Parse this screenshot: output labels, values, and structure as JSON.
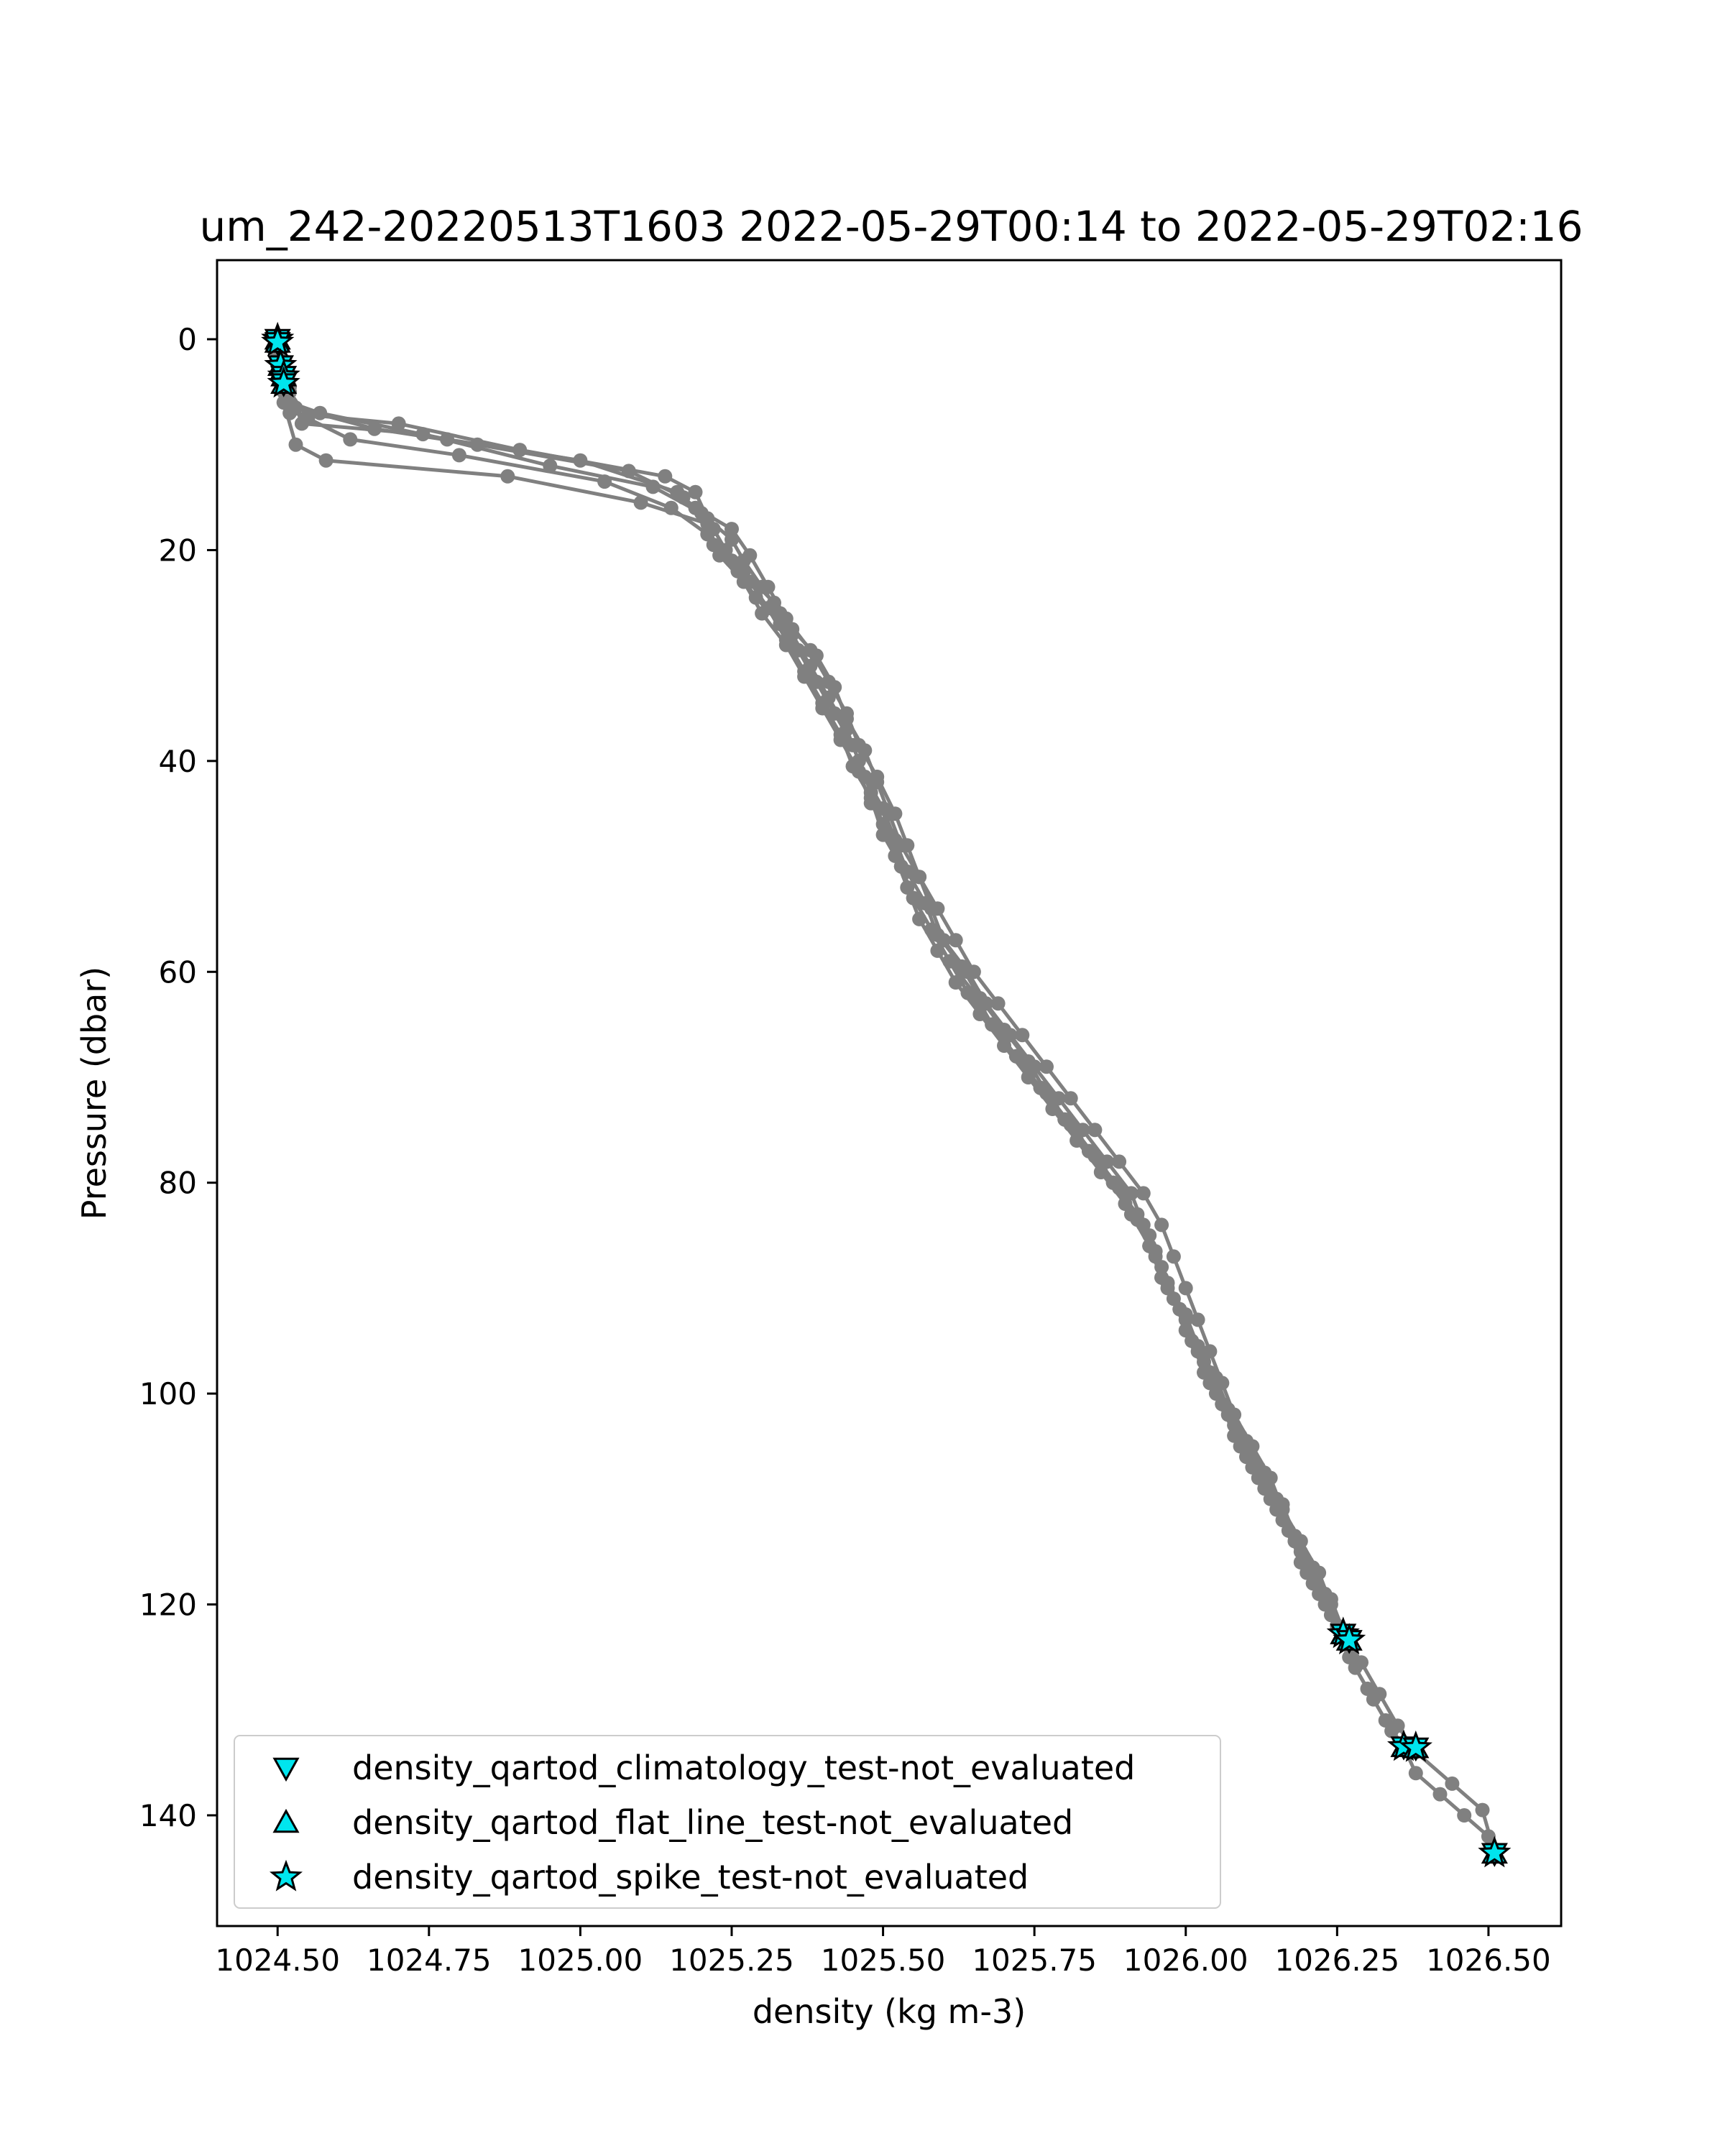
{
  "chart_data": {
    "type": "line",
    "title": "um_242-20220513T1603 2022-05-29T00:14 to 2022-05-29T02:16",
    "xlabel": "density (kg m-3)",
    "ylabel": "Pressure (dbar)",
    "xlim": [
      1024.4,
      1026.62
    ],
    "ylim": [
      150.5,
      -7.5
    ],
    "y_inverted": true,
    "grid": false,
    "xticks": [
      "1024.50",
      "1024.75",
      "1025.00",
      "1025.25",
      "1025.50",
      "1025.75",
      "1026.00",
      "1026.25",
      "1026.50"
    ],
    "yticks": [
      "0",
      "20",
      "40",
      "60",
      "80",
      "100",
      "120",
      "140"
    ],
    "line_color": "#808080",
    "marker_color": "#00e5ee",
    "series": [
      {
        "points": [
          [
            1024.5,
            0
          ],
          [
            1024.5,
            2
          ],
          [
            1024.51,
            3.5
          ],
          [
            1024.51,
            5
          ],
          [
            1024.52,
            7
          ],
          [
            1024.7,
            8
          ],
          [
            1024.9,
            10.5
          ],
          [
            1025.14,
            13
          ],
          [
            1025.19,
            14.5
          ],
          [
            1025.21,
            17
          ],
          [
            1025.25,
            19
          ],
          [
            1025.27,
            21
          ],
          [
            1025.3,
            23.5
          ],
          [
            1025.33,
            26
          ],
          [
            1025.35,
            28
          ],
          [
            1025.38,
            31
          ],
          [
            1025.41,
            34
          ],
          [
            1025.44,
            37
          ],
          [
            1025.46,
            40
          ],
          [
            1025.48,
            43
          ],
          [
            1025.5,
            46
          ],
          [
            1025.52,
            49
          ],
          [
            1025.54,
            52
          ],
          [
            1025.56,
            55
          ],
          [
            1025.59,
            58
          ],
          [
            1025.62,
            61
          ],
          [
            1025.66,
            64
          ],
          [
            1025.7,
            67
          ],
          [
            1025.74,
            70
          ],
          [
            1025.78,
            73
          ],
          [
            1025.82,
            76
          ],
          [
            1025.86,
            79
          ],
          [
            1025.9,
            82
          ],
          [
            1025.94,
            85
          ],
          [
            1025.96,
            88
          ],
          [
            1025.98,
            91
          ],
          [
            1026.0,
            94
          ],
          [
            1026.03,
            97
          ],
          [
            1026.05,
            100
          ],
          [
            1026.08,
            103
          ],
          [
            1026.1,
            106
          ],
          [
            1026.13,
            109
          ],
          [
            1026.16,
            112
          ],
          [
            1026.19,
            115
          ],
          [
            1026.21,
            118
          ],
          [
            1026.24,
            121
          ],
          [
            1026.26,
            123
          ]
        ]
      },
      {
        "points": [
          [
            1024.5,
            0.5
          ],
          [
            1024.5,
            2.5
          ],
          [
            1024.51,
            4
          ],
          [
            1024.53,
            6.5
          ],
          [
            1024.66,
            8.5
          ],
          [
            1024.83,
            10
          ],
          [
            1025.08,
            12.5
          ],
          [
            1025.17,
            15
          ],
          [
            1025.22,
            18
          ],
          [
            1025.24,
            20
          ],
          [
            1025.27,
            22
          ],
          [
            1025.32,
            25
          ],
          [
            1025.35,
            27.5
          ],
          [
            1025.39,
            30
          ],
          [
            1025.42,
            33
          ],
          [
            1025.44,
            36
          ],
          [
            1025.47,
            39
          ],
          [
            1025.49,
            42
          ],
          [
            1025.51,
            45
          ],
          [
            1025.53,
            48
          ],
          [
            1025.56,
            51
          ],
          [
            1025.58,
            54
          ],
          [
            1025.6,
            57
          ],
          [
            1025.64,
            60
          ],
          [
            1025.67,
            63
          ],
          [
            1025.71,
            66
          ],
          [
            1025.75,
            69
          ],
          [
            1025.79,
            72
          ],
          [
            1025.83,
            75
          ],
          [
            1025.87,
            78
          ],
          [
            1025.91,
            81
          ],
          [
            1025.93,
            84
          ],
          [
            1025.95,
            87
          ],
          [
            1025.97,
            90
          ],
          [
            1026.0,
            93
          ],
          [
            1026.02,
            96
          ],
          [
            1026.04,
            99
          ],
          [
            1026.07,
            102
          ],
          [
            1026.09,
            105
          ],
          [
            1026.12,
            108
          ],
          [
            1026.15,
            111
          ],
          [
            1026.18,
            114
          ],
          [
            1026.2,
            117
          ],
          [
            1026.23,
            120
          ],
          [
            1026.26,
            123
          ],
          [
            1026.28,
            126
          ],
          [
            1026.31,
            129
          ],
          [
            1026.34,
            132
          ],
          [
            1026.37,
            134
          ]
        ]
      },
      {
        "points": [
          [
            1024.5,
            1
          ],
          [
            1024.51,
            3
          ],
          [
            1024.52,
            5
          ],
          [
            1024.55,
            7.5
          ],
          [
            1024.62,
            9.5
          ],
          [
            1024.8,
            11
          ],
          [
            1025.04,
            13.5
          ],
          [
            1025.15,
            16
          ],
          [
            1025.21,
            18.5
          ],
          [
            1025.25,
            21
          ],
          [
            1025.28,
            23
          ],
          [
            1025.31,
            25.5
          ],
          [
            1025.34,
            28.5
          ],
          [
            1025.37,
            31.5
          ],
          [
            1025.4,
            34.5
          ],
          [
            1025.43,
            37.5
          ],
          [
            1025.45,
            40.5
          ],
          [
            1025.48,
            43.5
          ],
          [
            1025.5,
            47
          ],
          [
            1025.53,
            50
          ],
          [
            1025.55,
            53
          ],
          [
            1025.58,
            56
          ],
          [
            1025.61,
            59
          ],
          [
            1025.65,
            62
          ],
          [
            1025.68,
            65
          ],
          [
            1025.72,
            68
          ],
          [
            1025.76,
            71
          ],
          [
            1025.8,
            74
          ],
          [
            1025.84,
            77
          ],
          [
            1025.88,
            80
          ],
          [
            1025.92,
            83
          ],
          [
            1025.94,
            86
          ],
          [
            1025.96,
            89
          ],
          [
            1025.99,
            92
          ],
          [
            1026.01,
            95
          ],
          [
            1026.03,
            98
          ],
          [
            1026.06,
            101
          ],
          [
            1026.08,
            104
          ],
          [
            1026.11,
            107
          ],
          [
            1026.14,
            110
          ],
          [
            1026.17,
            113
          ],
          [
            1026.19,
            116
          ],
          [
            1026.22,
            119
          ],
          [
            1026.25,
            122
          ],
          [
            1026.27,
            125
          ],
          [
            1026.3,
            128
          ],
          [
            1026.33,
            131
          ],
          [
            1026.36,
            133.5
          ],
          [
            1026.38,
            136
          ],
          [
            1026.42,
            138
          ],
          [
            1026.46,
            140
          ],
          [
            1026.5,
            142
          ],
          [
            1026.51,
            143.5
          ]
        ]
      },
      {
        "points": [
          [
            1024.5,
            0.5
          ],
          [
            1024.51,
            3
          ],
          [
            1024.52,
            4.5
          ],
          [
            1024.54,
            8
          ],
          [
            1024.74,
            9
          ],
          [
            1024.95,
            12
          ],
          [
            1025.12,
            14
          ],
          [
            1025.2,
            16.5
          ],
          [
            1025.22,
            19.5
          ],
          [
            1025.26,
            22
          ],
          [
            1025.29,
            24.5
          ],
          [
            1025.33,
            27
          ],
          [
            1025.36,
            29.5
          ],
          [
            1025.39,
            32.5
          ],
          [
            1025.42,
            35.5
          ],
          [
            1025.45,
            38.5
          ],
          [
            1025.47,
            41.5
          ],
          [
            1025.5,
            44.5
          ],
          [
            1025.52,
            47.5
          ],
          [
            1025.54,
            50.5
          ],
          [
            1025.57,
            53.5
          ],
          [
            1025.59,
            56.5
          ],
          [
            1025.63,
            59.5
          ],
          [
            1025.66,
            62.5
          ],
          [
            1025.7,
            65.5
          ],
          [
            1025.74,
            68.5
          ],
          [
            1025.77,
            71.5
          ],
          [
            1025.81,
            74.5
          ],
          [
            1025.85,
            77.5
          ],
          [
            1025.89,
            80.5
          ],
          [
            1025.92,
            83.5
          ],
          [
            1025.95,
            86.5
          ],
          [
            1025.97,
            89.5
          ],
          [
            1026.0,
            92.5
          ],
          [
            1026.02,
            95.5
          ],
          [
            1026.05,
            98.5
          ],
          [
            1026.07,
            101.5
          ],
          [
            1026.1,
            104.5
          ],
          [
            1026.13,
            107.5
          ],
          [
            1026.16,
            110.5
          ],
          [
            1026.18,
            113.5
          ],
          [
            1026.21,
            116.5
          ],
          [
            1026.24,
            119.5
          ],
          [
            1026.26,
            122.5
          ],
          [
            1026.29,
            125.5
          ],
          [
            1026.32,
            128.5
          ],
          [
            1026.35,
            131.5
          ],
          [
            1026.38,
            134
          ],
          [
            1026.44,
            137
          ],
          [
            1026.49,
            139.5
          ],
          [
            1026.51,
            143.5
          ]
        ]
      },
      {
        "points": [
          [
            1024.5,
            1.5
          ],
          [
            1024.51,
            4
          ],
          [
            1024.51,
            6
          ],
          [
            1024.53,
            10
          ],
          [
            1024.58,
            11.5
          ],
          [
            1024.88,
            13
          ],
          [
            1025.1,
            15.5
          ],
          [
            1025.21,
            17.5
          ],
          [
            1025.23,
            20.5
          ],
          [
            1025.27,
            23
          ],
          [
            1025.3,
            26
          ],
          [
            1025.34,
            29
          ],
          [
            1025.37,
            32
          ],
          [
            1025.4,
            35
          ],
          [
            1025.43,
            38
          ],
          [
            1025.46,
            41
          ],
          [
            1025.48,
            44
          ],
          [
            1025.51,
            47
          ],
          [
            1025.53,
            50
          ],
          [
            1025.55,
            53
          ],
          [
            1025.58,
            56
          ],
          [
            1025.61,
            59
          ],
          [
            1025.64,
            62
          ],
          [
            1025.68,
            65
          ],
          [
            1025.72,
            68
          ],
          [
            1025.76,
            71
          ],
          [
            1025.8,
            74
          ],
          [
            1025.84,
            77
          ],
          [
            1025.88,
            80
          ],
          [
            1025.91,
            83
          ],
          [
            1025.94,
            86
          ],
          [
            1025.96,
            89
          ],
          [
            1025.99,
            92
          ],
          [
            1026.01,
            95
          ],
          [
            1026.04,
            98
          ],
          [
            1026.06,
            101
          ],
          [
            1026.09,
            104
          ],
          [
            1026.12,
            107
          ],
          [
            1026.15,
            110
          ],
          [
            1026.17,
            113
          ],
          [
            1026.2,
            116
          ],
          [
            1026.23,
            119
          ],
          [
            1026.25,
            122
          ],
          [
            1026.27,
            124
          ]
        ]
      },
      {
        "points": [
          [
            1024.51,
            2
          ],
          [
            1024.51,
            4.5
          ],
          [
            1024.52,
            6
          ],
          [
            1024.57,
            7
          ],
          [
            1024.78,
            9.5
          ],
          [
            1025.0,
            11.5
          ],
          [
            1025.16,
            14.5
          ],
          [
            1025.19,
            16
          ],
          [
            1025.25,
            18
          ],
          [
            1025.28,
            20.5
          ],
          [
            1025.31,
            23.5
          ],
          [
            1025.34,
            26.5
          ],
          [
            1025.38,
            29.5
          ],
          [
            1025.41,
            32.5
          ],
          [
            1025.44,
            35.5
          ],
          [
            1025.46,
            38.5
          ],
          [
            1025.49,
            41.5
          ],
          [
            1025.52,
            45
          ],
          [
            1025.54,
            48
          ],
          [
            1025.56,
            51
          ],
          [
            1025.59,
            54
          ],
          [
            1025.62,
            57
          ],
          [
            1025.65,
            60
          ],
          [
            1025.69,
            63
          ],
          [
            1025.73,
            66
          ],
          [
            1025.77,
            69
          ],
          [
            1025.81,
            72
          ],
          [
            1025.85,
            75
          ],
          [
            1025.89,
            78
          ],
          [
            1025.93,
            81
          ],
          [
            1025.96,
            84
          ],
          [
            1025.98,
            87
          ],
          [
            1026.0,
            90
          ],
          [
            1026.02,
            93
          ],
          [
            1026.04,
            96
          ],
          [
            1026.06,
            99
          ],
          [
            1026.08,
            102
          ],
          [
            1026.11,
            105
          ],
          [
            1026.14,
            108
          ],
          [
            1026.16,
            111
          ],
          [
            1026.19,
            114
          ],
          [
            1026.22,
            117
          ],
          [
            1026.24,
            120
          ],
          [
            1026.26,
            122.5
          ]
        ]
      }
    ],
    "flagged_points": [
      [
        1024.5,
        0
      ],
      [
        1024.5,
        0.3
      ],
      [
        1024.505,
        2.5
      ],
      [
        1024.51,
        3.5
      ],
      [
        1024.51,
        4.2
      ],
      [
        1026.26,
        122.8
      ],
      [
        1026.27,
        123.4
      ],
      [
        1026.36,
        133.5
      ],
      [
        1026.38,
        133.6
      ],
      [
        1026.51,
        143.6
      ]
    ],
    "legend": {
      "placement": "lower-left",
      "entries": [
        {
          "label": "density_qartod_climatology_test-not_evaluated",
          "marker": "triangle-down"
        },
        {
          "label": "density_qartod_flat_line_test-not_evaluated",
          "marker": "triangle-up"
        },
        {
          "label": "density_qartod_spike_test-not_evaluated",
          "marker": "star"
        }
      ]
    }
  }
}
